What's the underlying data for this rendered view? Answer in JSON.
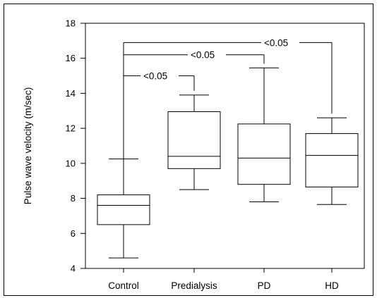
{
  "chart_data": {
    "type": "boxplot",
    "ylabel": "Pulse wave velocity (m/sec)",
    "ylim": [
      4,
      18
    ],
    "yticks": [
      4,
      6,
      8,
      10,
      12,
      14,
      16,
      18
    ],
    "grid": false,
    "categories": [
      "Control",
      "Predialysis",
      "PD",
      "HD"
    ],
    "boxes": [
      {
        "name": "Control",
        "min": 4.6,
        "q1": 6.5,
        "median": 7.6,
        "q3": 8.2,
        "max": 10.25
      },
      {
        "name": "Predialysis",
        "min": 8.5,
        "q1": 9.7,
        "median": 10.4,
        "q3": 12.95,
        "max": 13.9
      },
      {
        "name": "PD",
        "min": 7.8,
        "q1": 8.8,
        "median": 10.3,
        "q3": 12.25,
        "max": 15.45
      },
      {
        "name": "HD",
        "min": 7.65,
        "q1": 8.65,
        "median": 10.45,
        "q3": 11.7,
        "max": 12.6
      }
    ],
    "annotations": [
      {
        "from": "Control",
        "to": "Predialysis",
        "label": "<0.05",
        "y": 15.0
      },
      {
        "from": "Control",
        "to": "PD",
        "label": "<0.05",
        "y": 16.2
      },
      {
        "from": "Control",
        "to": "HD",
        "label": "<0.05",
        "y": 16.9
      }
    ]
  }
}
